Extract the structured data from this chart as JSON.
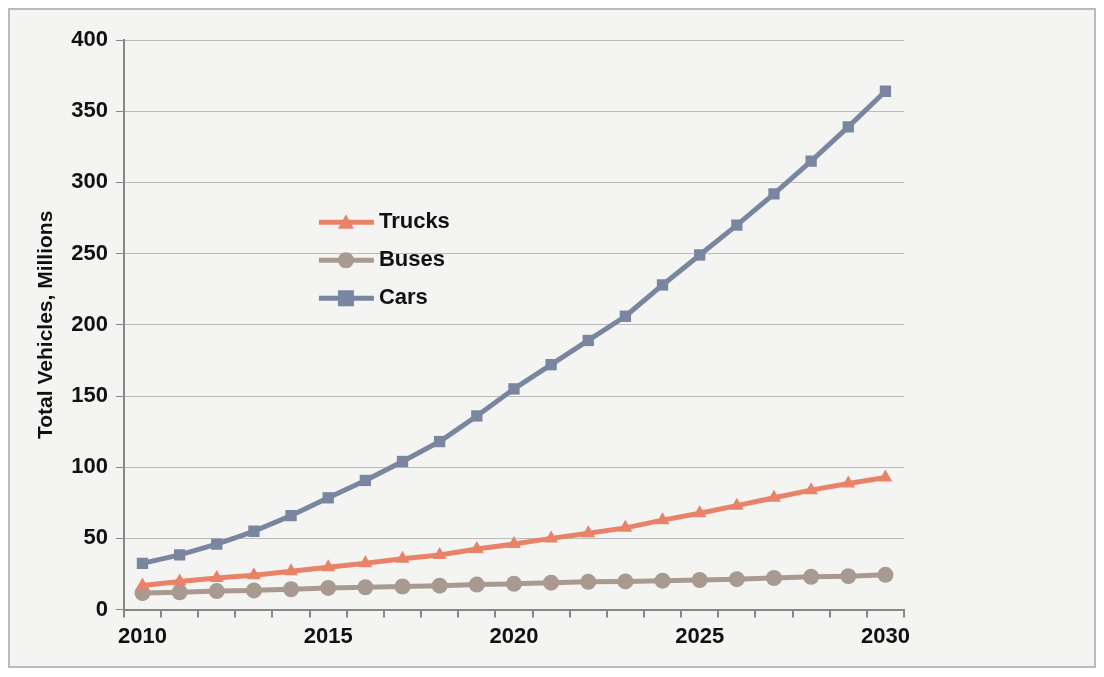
{
  "chart_data": {
    "type": "line",
    "ylabel": "Total Vehicles, Millions",
    "categories": [
      "2010",
      null,
      null,
      null,
      null,
      "2015",
      null,
      null,
      null,
      null,
      "2020",
      null,
      null,
      null,
      null,
      "2025",
      null,
      null,
      null,
      null,
      "2030"
    ],
    "series": [
      {
        "name": "Trucks",
        "color": "#e8836a",
        "marker": "triangle",
        "values": [
          17,
          19.8,
          22.2,
          24.1,
          27,
          29.8,
          32.5,
          35.7,
          38.4,
          42.5,
          46,
          50,
          53.6,
          57.4,
          62.8,
          67.7,
          73,
          78.5,
          83.9,
          88.5,
          92.8
        ]
      },
      {
        "name": "Buses",
        "color": "#a89a90",
        "marker": "circle",
        "values": [
          11.6,
          12.2,
          13,
          13.5,
          14.3,
          15.2,
          15.7,
          16.2,
          16.8,
          17.6,
          18.1,
          18.9,
          19.5,
          19.8,
          20.3,
          20.8,
          21.4,
          22.2,
          23,
          23.5,
          24.4
        ]
      },
      {
        "name": "Cars",
        "color": "#7a86a0",
        "marker": "square",
        "values": [
          32.5,
          38.4,
          46,
          55,
          66,
          78.5,
          90.7,
          104,
          118,
          136,
          155,
          172,
          189,
          206,
          228,
          249,
          270,
          292,
          315,
          339,
          364
        ]
      }
    ],
    "ylim": [
      0,
      400
    ],
    "yticks": [
      0,
      50,
      100,
      150,
      200,
      250,
      300,
      350,
      400
    ],
    "grid": "y",
    "legend": "top left",
    "line_style": "solid"
  }
}
